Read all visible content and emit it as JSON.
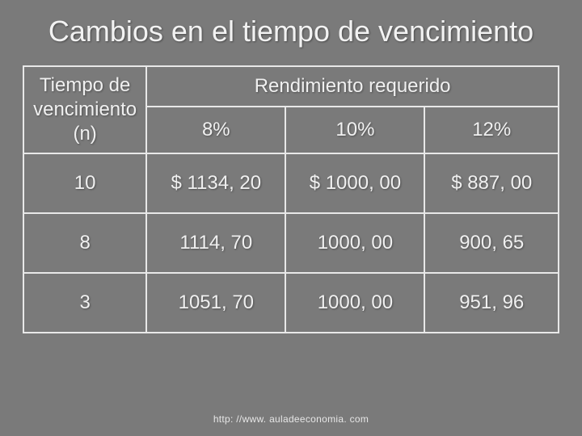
{
  "colors": {
    "background": "#7a7a7a",
    "text": "#f0f0f0",
    "border": "#e8e8e8"
  },
  "typography": {
    "title_fontsize": 36,
    "cell_fontsize": 24,
    "footer_fontsize": 12,
    "font_family": "Verdana"
  },
  "title": "Cambios en el tiempo de vencimiento",
  "table": {
    "row_header_label": "Tiempo de vencimiento (n)",
    "spanning_header": "Rendimiento requerido",
    "columns": [
      "8%",
      "10%",
      "12%"
    ],
    "rows": [
      {
        "n": "10",
        "values": [
          "$ 1134, 20",
          "$ 1000, 00",
          "$ 887, 00"
        ]
      },
      {
        "n": "8",
        "values": [
          "1114, 70",
          "1000, 00",
          "900, 65"
        ]
      },
      {
        "n": "3",
        "values": [
          "1051, 70",
          "1000, 00",
          "951, 96"
        ]
      }
    ],
    "col_widths_pct": [
      23,
      26,
      26,
      25
    ]
  },
  "footer_url": "http: //www. auladeeconomia. com"
}
